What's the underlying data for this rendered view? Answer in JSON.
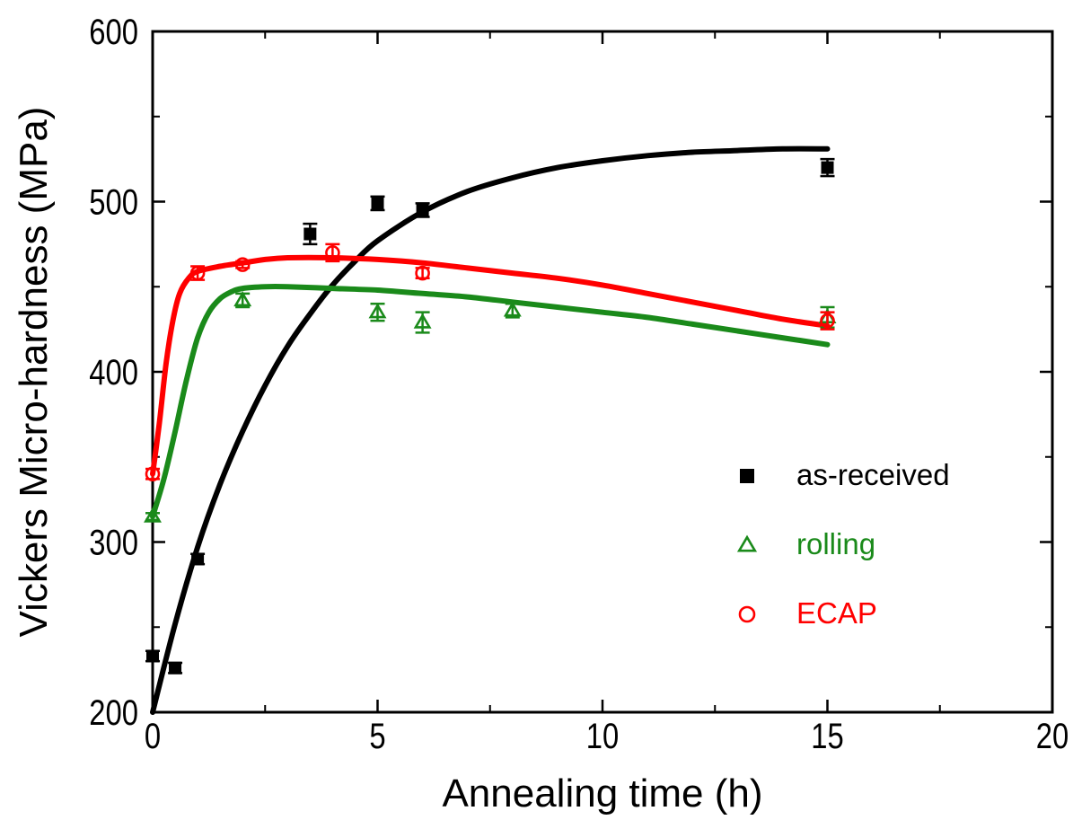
{
  "chart_data": {
    "type": "scatter",
    "xlabel": "Annealing time (h)",
    "ylabel": "Vickers Micro-hardness  (MPa)",
    "xlim": [
      0,
      20
    ],
    "ylim": [
      200,
      600
    ],
    "xticks": [
      0,
      5,
      10,
      15,
      20
    ],
    "yticks": [
      200,
      300,
      400,
      500,
      600
    ],
    "xtick_labels": [
      "0",
      "5",
      "10",
      "15",
      "20"
    ],
    "ytick_labels": [
      "200",
      "300",
      "400",
      "500",
      "600"
    ],
    "grid": false,
    "legend_position": "lower-right",
    "series": [
      {
        "name": "as-received",
        "marker": "filled-square",
        "color": "#000000",
        "points": [
          {
            "x": 0,
            "y": 233,
            "err": 3
          },
          {
            "x": 0.5,
            "y": 226,
            "err": 3
          },
          {
            "x": 1,
            "y": 290,
            "err": 3
          },
          {
            "x": 3.5,
            "y": 481,
            "err": 6
          },
          {
            "x": 5,
            "y": 499,
            "err": 4
          },
          {
            "x": 6,
            "y": 495,
            "err": 4
          },
          {
            "x": 15,
            "y": 520,
            "err": 5
          }
        ],
        "fit": [
          [
            0,
            200
          ],
          [
            0.5,
            252
          ],
          [
            1,
            297
          ],
          [
            1.5,
            334
          ],
          [
            2,
            365
          ],
          [
            2.5,
            392
          ],
          [
            3,
            415
          ],
          [
            3.5,
            434
          ],
          [
            4,
            451
          ],
          [
            4.5,
            465
          ],
          [
            5,
            477
          ],
          [
            6,
            494
          ],
          [
            7,
            506
          ],
          [
            8,
            514
          ],
          [
            9,
            520
          ],
          [
            10,
            524
          ],
          [
            11,
            527
          ],
          [
            12,
            529
          ],
          [
            13,
            530
          ],
          [
            14,
            531
          ],
          [
            15,
            531
          ]
        ]
      },
      {
        "name": "rolling",
        "marker": "open-triangle",
        "color": "#1a8a1a",
        "points": [
          {
            "x": 0,
            "y": 315,
            "err": 2
          },
          {
            "x": 2,
            "y": 442,
            "err": 4
          },
          {
            "x": 5,
            "y": 435,
            "err": 5
          },
          {
            "x": 6,
            "y": 429,
            "err": 6
          },
          {
            "x": 8,
            "y": 436,
            "err": 4
          },
          {
            "x": 15,
            "y": 432,
            "err": 6
          }
        ],
        "fit": [
          [
            0,
            315
          ],
          [
            0.25,
            337
          ],
          [
            0.5,
            365
          ],
          [
            0.75,
            395
          ],
          [
            1,
            420
          ],
          [
            1.25,
            435
          ],
          [
            1.5,
            443
          ],
          [
            1.75,
            447
          ],
          [
            2,
            449
          ],
          [
            2.5,
            450
          ],
          [
            3,
            450
          ],
          [
            4,
            449
          ],
          [
            5,
            448
          ],
          [
            6,
            446
          ],
          [
            7,
            444
          ],
          [
            8,
            441
          ],
          [
            9,
            438
          ],
          [
            10,
            435
          ],
          [
            11,
            432
          ],
          [
            12,
            428
          ],
          [
            13,
            424
          ],
          [
            14,
            420
          ],
          [
            15,
            416
          ]
        ]
      },
      {
        "name": "ECAP",
        "marker": "open-circle",
        "color": "#ff0000",
        "points": [
          {
            "x": 0,
            "y": 340,
            "err": 3
          },
          {
            "x": 1,
            "y": 458,
            "err": 4
          },
          {
            "x": 2,
            "y": 463,
            "err": 2
          },
          {
            "x": 4,
            "y": 470,
            "err": 5
          },
          {
            "x": 6,
            "y": 458,
            "err": 3
          },
          {
            "x": 15,
            "y": 430,
            "err": 5
          }
        ],
        "fit": [
          [
            0,
            340
          ],
          [
            0.15,
            370
          ],
          [
            0.3,
            405
          ],
          [
            0.45,
            430
          ],
          [
            0.6,
            446
          ],
          [
            0.8,
            455
          ],
          [
            1,
            459
          ],
          [
            1.5,
            462
          ],
          [
            2,
            464
          ],
          [
            2.5,
            466
          ],
          [
            3,
            467
          ],
          [
            4,
            467
          ],
          [
            5,
            466
          ],
          [
            6,
            464
          ],
          [
            7,
            461
          ],
          [
            8,
            458
          ],
          [
            9,
            455
          ],
          [
            10,
            451
          ],
          [
            11,
            446
          ],
          [
            12,
            441
          ],
          [
            13,
            436
          ],
          [
            14,
            431
          ],
          [
            15,
            427
          ]
        ]
      }
    ]
  }
}
